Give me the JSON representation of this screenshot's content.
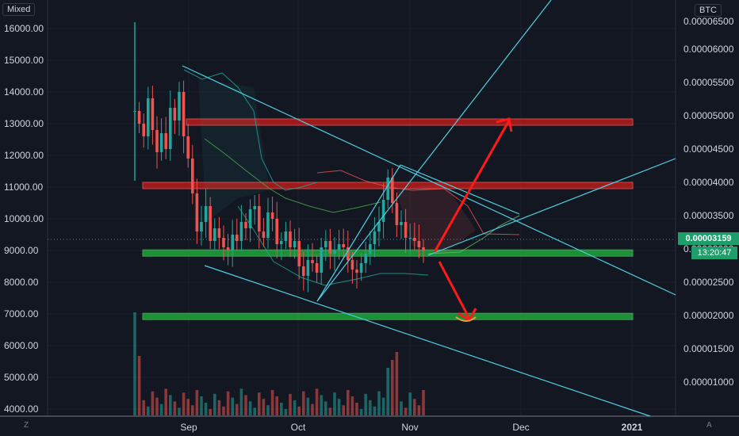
{
  "header": {
    "mode_label": "Mixed",
    "unit_label": "BTC"
  },
  "price_readout": {
    "current": "0.00003159",
    "countdown": "13:20:47"
  },
  "corners": {
    "left": "Z",
    "right": "A"
  },
  "colors": {
    "background": "#131722",
    "up": "#26a69a",
    "down": "#ef5350",
    "trendline": "#4dd0e1",
    "support": "#1e9e3b",
    "resistance": "#b71c1c",
    "arrow": "#ff1a1a"
  },
  "chart_data": {
    "type": "candlestick",
    "left_axis": {
      "ticks": [
        "16000.00",
        "15000.00",
        "14000.00",
        "13000.00",
        "12000.00",
        "11000.00",
        "10000.00",
        "9000.00",
        "8000.00",
        "7000.00",
        "6000.00",
        "5000.00",
        "4000.00"
      ],
      "range": [
        3800,
        16500
      ]
    },
    "right_axis": {
      "ticks": [
        "0.00006000",
        "0.00005500",
        "0.00005000",
        "0.00004500",
        "0.00004000",
        "0.00003500",
        "0.00003000",
        "0.00002500",
        "0.00002000",
        "0.00001500",
        "0.00001000"
      ],
      "visible_top_tick": "0.00006500"
    },
    "x_axis": {
      "ticks": [
        "Sep",
        "Oct",
        "Nov",
        "Dec",
        "2021"
      ]
    },
    "resistance_zones": [
      [
        12950,
        13150
      ],
      [
        10950,
        11150
      ]
    ],
    "support_zones": [
      [
        8820,
        9020
      ],
      [
        6820,
        7020
      ]
    ],
    "current_price": 3.159e-05,
    "close_path": [
      13400,
      13000,
      12600,
      13800,
      12800,
      12100,
      12700,
      12200,
      13500,
      13100,
      14000,
      12600,
      11900,
      10800,
      9600,
      9900,
      10400,
      9300,
      9700,
      9400,
      9100,
      9000,
      9500,
      9300,
      9900,
      9700,
      10300,
      10400,
      9600,
      9400,
      10200,
      10000,
      9200,
      9300,
      9600,
      9100,
      9300,
      8500,
      8200,
      8700,
      8600,
      8300,
      9100,
      9300,
      8900,
      9000,
      9200,
      9100,
      8700,
      8400,
      8300,
      8600,
      8900,
      9200,
      9600,
      9900,
      10600,
      11300,
      10500,
      9800,
      9900,
      9400,
      9400,
      9300,
      9100,
      9000
    ]
  }
}
